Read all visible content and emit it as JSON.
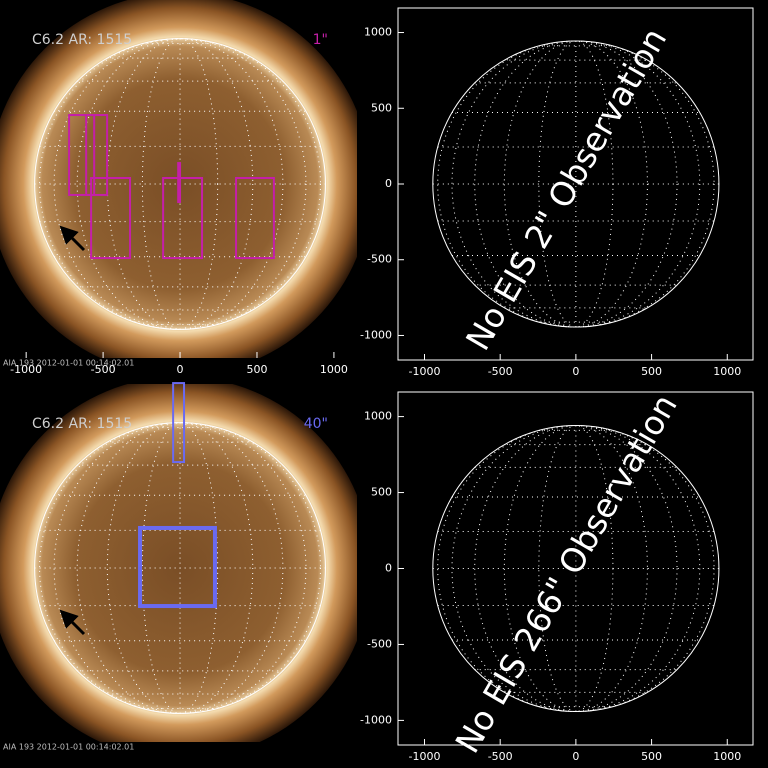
{
  "chart_data": [
    {
      "type": "solar-map",
      "label": "C6.2 AR: 1515",
      "fov": "1\"",
      "fov_color": "#c41fa8",
      "footer": "AIA 193  2012-01-01 00:14:02.01",
      "xlim": [
        -1170,
        1150
      ],
      "ylim": [
        -1130,
        1195
      ],
      "xticks": [
        -1000,
        -500,
        0,
        500,
        1000
      ],
      "disk_radius": 945,
      "boxes": [
        {
          "x": [
            -721,
            -558
          ],
          "y": [
            -71,
            448
          ]
        },
        {
          "x": [
            -610,
            -474
          ],
          "y": [
            -71,
            448
          ]
        },
        {
          "x": [
            -578,
            -325
          ],
          "y": [
            -481,
            39
          ]
        },
        {
          "x": [
            -110,
            143
          ],
          "y": [
            -481,
            39
          ]
        },
        {
          "x": [
            364,
            610
          ],
          "y": [
            -481,
            39
          ]
        },
        {
          "x": [
            -12,
            0
          ],
          "y": [
            -117,
            136
          ]
        }
      ]
    },
    {
      "type": "empty-map",
      "annotation": "No EIS 2\" Observation",
      "xlim": [
        -1175,
        1170
      ],
      "ylim": [
        -1162,
        1162
      ],
      "xticks": [
        -1000,
        -500,
        0,
        500,
        1000
      ],
      "yticks": [
        -1000,
        -500,
        0,
        500,
        1000
      ],
      "disk_radius": 945
    },
    {
      "type": "solar-map",
      "label": "C6.2 AR: 1515",
      "fov": "40\"",
      "fov_color": "#6a6af0",
      "footer": "AIA 193  2012-01-01 00:14:02.01",
      "xlim": [
        -1170,
        1150
      ],
      "ylim": [
        -1130,
        1195
      ],
      "disk_radius": 945,
      "boxes": [
        {
          "x": [
            -45,
            26
          ],
          "y": [
            688,
            1201
          ]
        },
        {
          "x": [
            -260,
            227
          ],
          "y": [
            -247,
            260
          ]
        }
      ]
    },
    {
      "type": "empty-map",
      "annotation": "No EIS 266\" Observation",
      "xlim": [
        -1175,
        1170
      ],
      "ylim": [
        -1162,
        1162
      ],
      "xticks": [
        -1000,
        -500,
        0,
        500,
        1000
      ],
      "yticks": [
        -1000,
        -500,
        0,
        500,
        1000
      ],
      "disk_radius": 945
    }
  ]
}
